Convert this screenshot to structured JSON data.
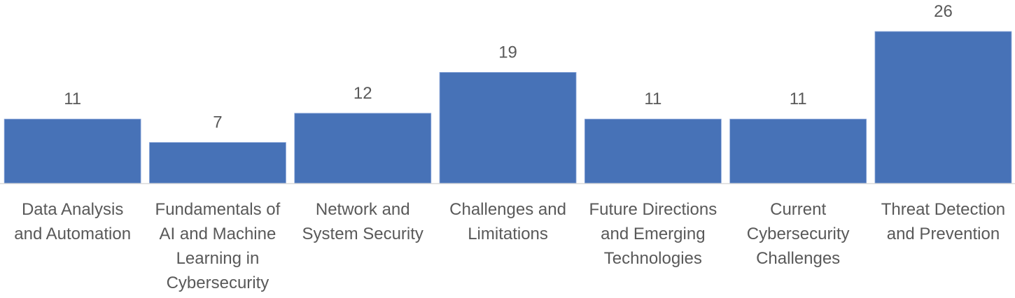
{
  "chart_data": {
    "type": "bar",
    "categories": [
      "Data Analysis and Automation",
      "Fundamentals of AI and Machine Learning in Cybersecurity",
      "Network and System Security",
      "Challenges and Limitations",
      "Future Directions and Emerging Technologies",
      "Current Cybersecurity Challenges",
      "Threat Detection and Prevention"
    ],
    "category_label_lines": [
      [
        "Data Analysis",
        "and Automation"
      ],
      [
        "Fundamentals of",
        "AI and Machine",
        "Learning in",
        "Cybersecurity"
      ],
      [
        "Network and",
        "System Security"
      ],
      [
        "Challenges and",
        "Limitations"
      ],
      [
        "Future Directions",
        "and Emerging",
        "Technologies"
      ],
      [
        "Current",
        "Cybersecurity",
        "Challenges"
      ],
      [
        "Threat Detection",
        "and Prevention"
      ]
    ],
    "values": [
      11,
      7,
      12,
      19,
      11,
      11,
      26
    ],
    "data_labels": [
      "11",
      "7",
      "12",
      "19",
      "11",
      "11",
      "26"
    ],
    "title": "",
    "xlabel": "",
    "ylabel": "",
    "ylim": [
      0,
      26
    ],
    "grid": false,
    "legend": "none",
    "bar_color": "#4772b7",
    "label_color": "#595959",
    "axis_color": "#d9d9d9"
  }
}
